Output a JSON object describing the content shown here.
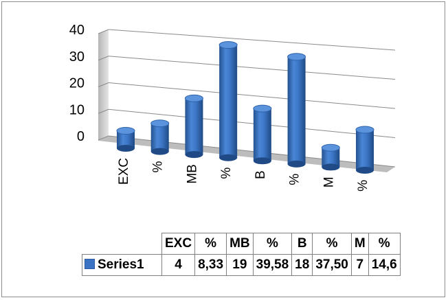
{
  "chart_data": {
    "type": "bar",
    "style": "3d-cylinder",
    "categories": [
      "EXC",
      "%",
      "MB",
      "%",
      "B",
      "%",
      "M",
      "%"
    ],
    "series": [
      {
        "name": "Series1",
        "values": [
          4,
          8.33,
          19,
          39.58,
          18,
          37.5,
          7,
          14.6
        ],
        "labels": [
          "4",
          "8,33",
          "19",
          "39,58",
          "18",
          "37,50",
          "7",
          "14,6"
        ],
        "color": "#3a73c4"
      }
    ],
    "ylim": [
      0,
      40
    ],
    "yticks": [
      "0",
      "10",
      "20",
      "30",
      "40"
    ],
    "grid": true,
    "data_table": true
  }
}
